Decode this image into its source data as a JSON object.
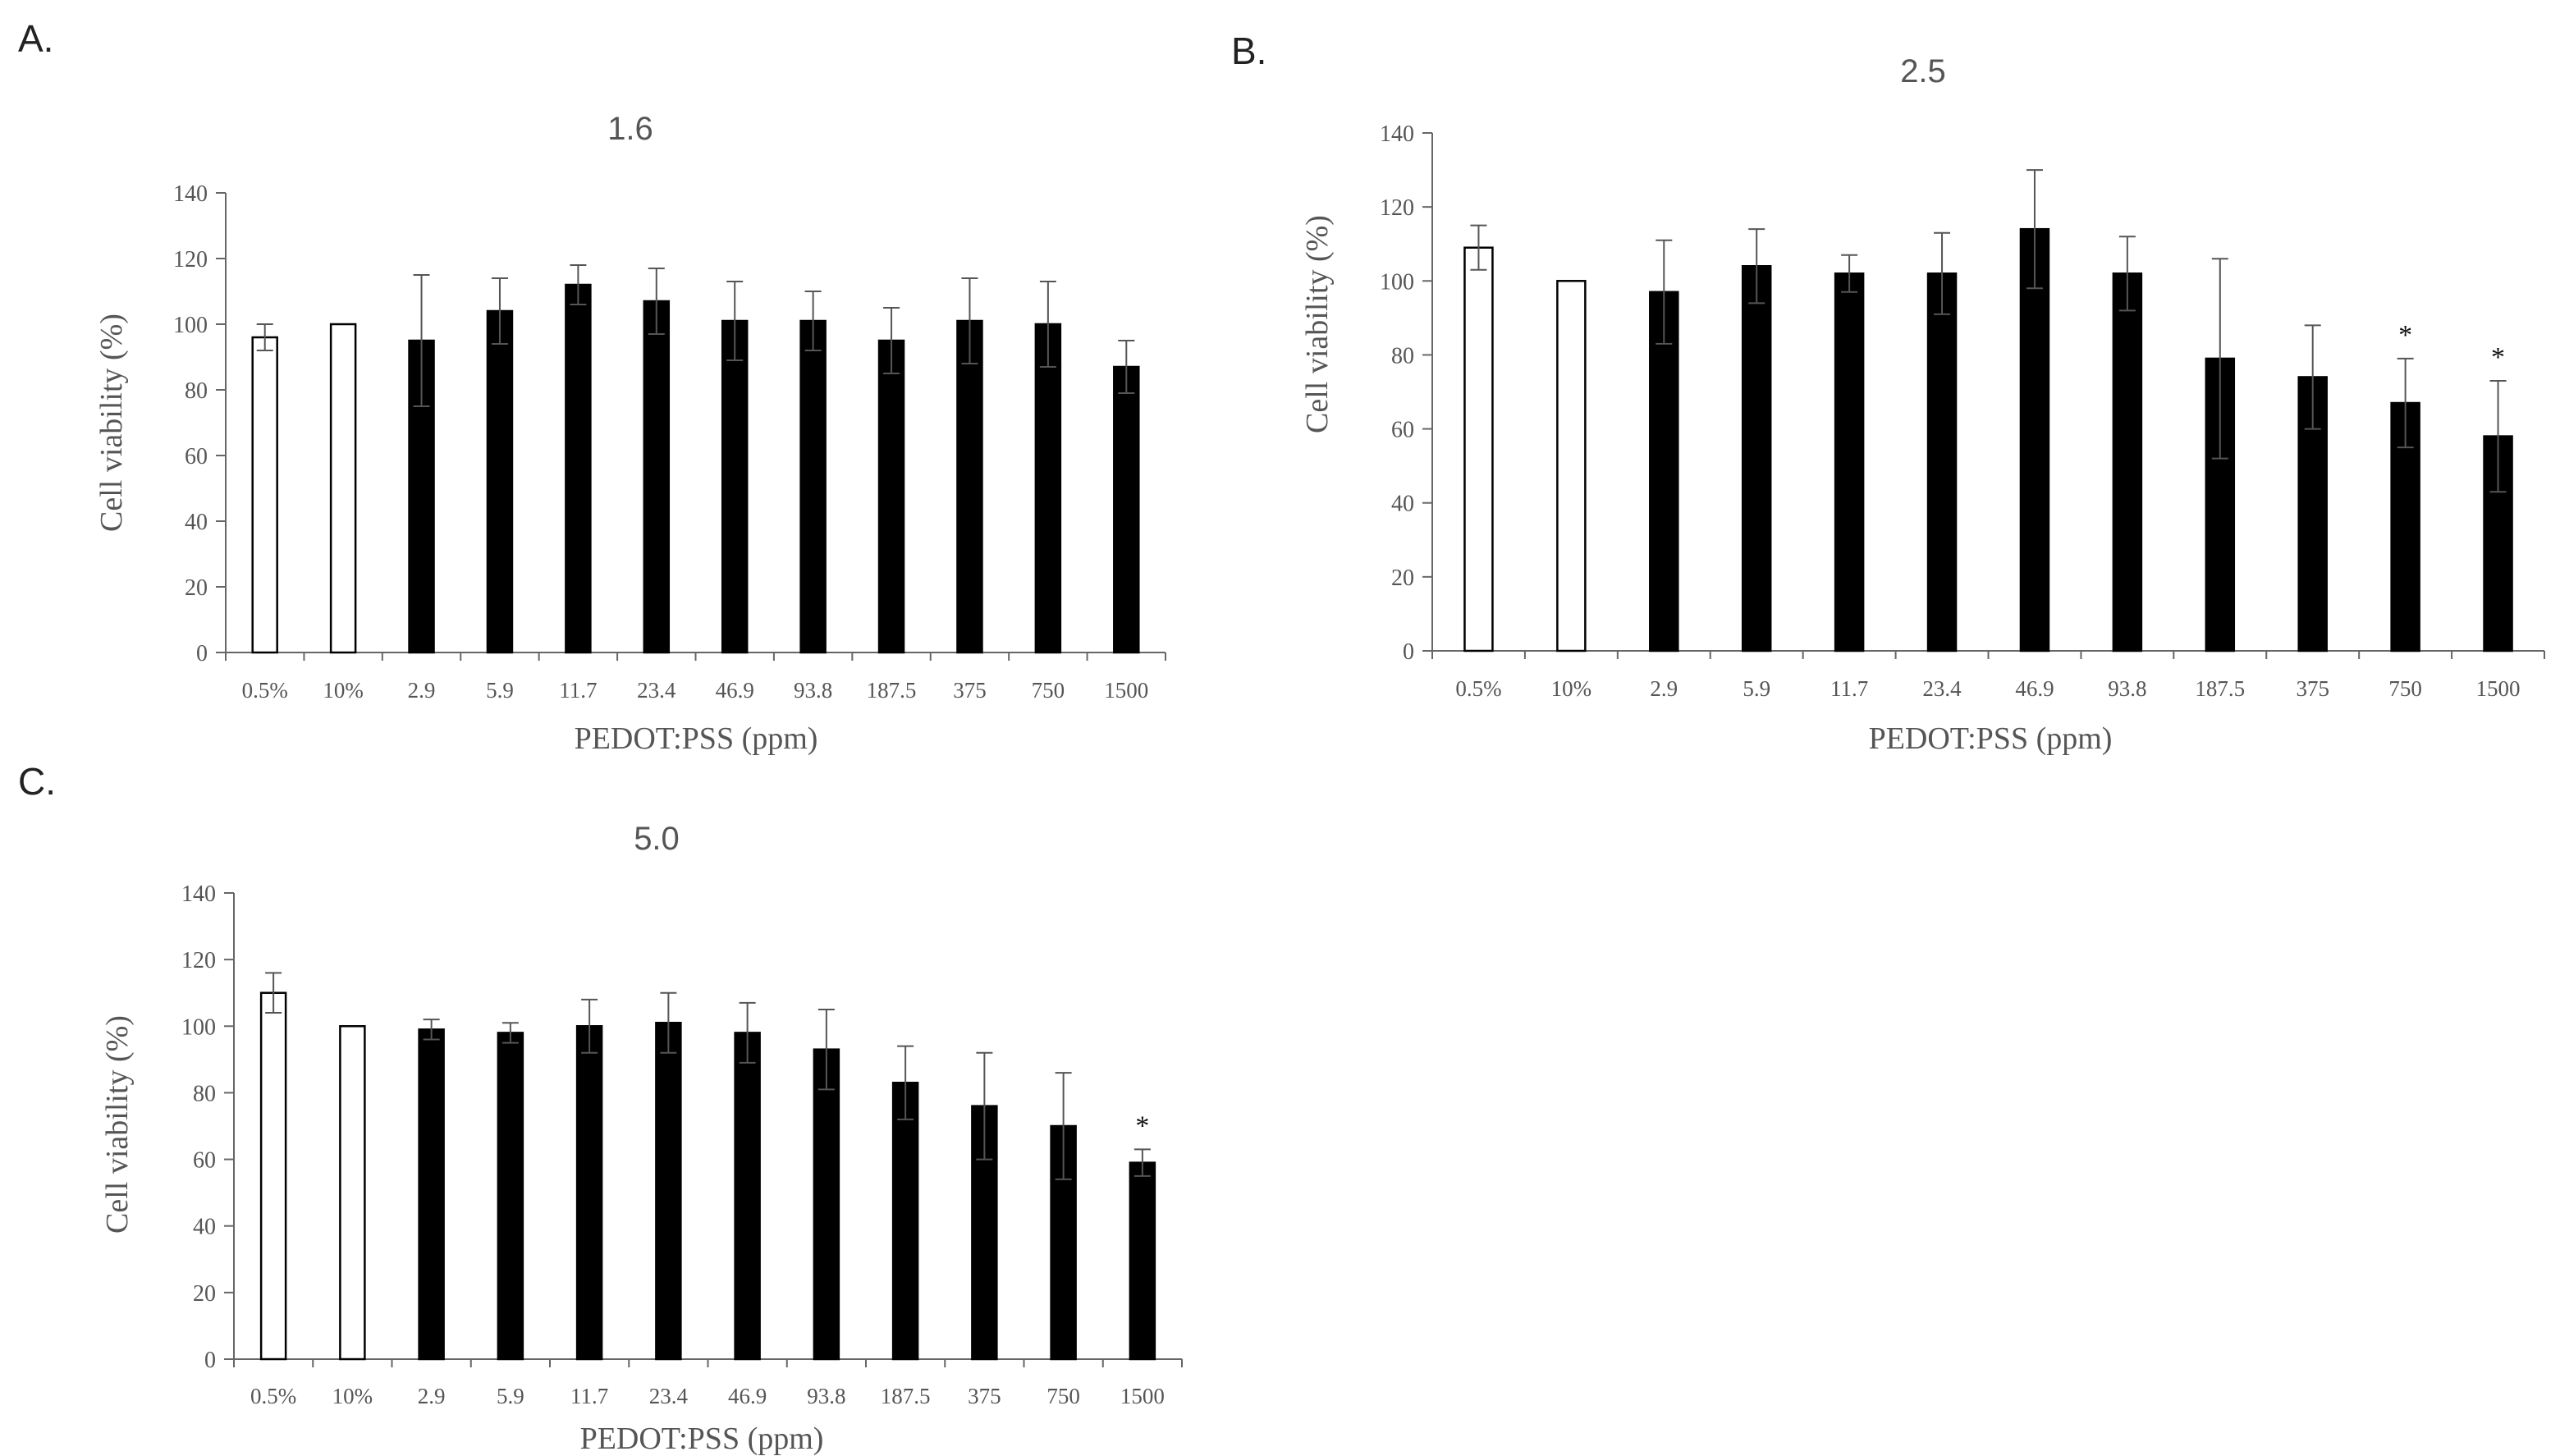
{
  "panels": [
    {
      "label": "A."
    },
    {
      "label": "B."
    },
    {
      "label": "C."
    }
  ],
  "colors": {
    "control_fill": "#ffffff",
    "treatment_fill": "#000000",
    "axis": "#666666",
    "text": "#555555"
  },
  "chart_data": [
    {
      "type": "bar",
      "title": "1.6",
      "xlabel": "PEDOT:PSS (ppm)",
      "ylabel": "Cell viability (%)",
      "ylim": [
        0,
        140
      ],
      "yticks": [
        "0",
        "20",
        "40",
        "60",
        "80",
        "100",
        "120",
        "140"
      ],
      "categories": [
        "0.5%",
        "10%",
        "2.9",
        "5.9",
        "11.7",
        "23.4",
        "46.9",
        "93.8",
        "187.5",
        "375",
        "750",
        "1500"
      ],
      "values": [
        96,
        100,
        95,
        104,
        112,
        107,
        101,
        101,
        95,
        101,
        100,
        87
      ],
      "errors": [
        4,
        0,
        20,
        10,
        6,
        10,
        12,
        9,
        10,
        13,
        13,
        8
      ],
      "bar_kind": [
        "control",
        "control",
        "treatment",
        "treatment",
        "treatment",
        "treatment",
        "treatment",
        "treatment",
        "treatment",
        "treatment",
        "treatment",
        "treatment"
      ],
      "significance": [
        "",
        "",
        "",
        "",
        "",
        "",
        "",
        "",
        "",
        "",
        "",
        ""
      ]
    },
    {
      "type": "bar",
      "title": "2.5",
      "xlabel": "PEDOT:PSS (ppm)",
      "ylabel": "Cell viability (%)",
      "ylim": [
        0,
        140
      ],
      "yticks": [
        "0",
        "20",
        "40",
        "60",
        "80",
        "100",
        "120",
        "140"
      ],
      "categories": [
        "0.5%",
        "10%",
        "2.9",
        "5.9",
        "11.7",
        "23.4",
        "46.9",
        "93.8",
        "187.5",
        "375",
        "750",
        "1500"
      ],
      "values": [
        109,
        100,
        97,
        104,
        102,
        102,
        114,
        102,
        79,
        74,
        67,
        58
      ],
      "errors": [
        6,
        0,
        14,
        10,
        5,
        11,
        16,
        10,
        27,
        14,
        12,
        15
      ],
      "bar_kind": [
        "control",
        "control",
        "treatment",
        "treatment",
        "treatment",
        "treatment",
        "treatment",
        "treatment",
        "treatment",
        "treatment",
        "treatment",
        "treatment"
      ],
      "significance": [
        "",
        "",
        "",
        "",
        "",
        "",
        "",
        "",
        "",
        "",
        "*",
        "*"
      ]
    },
    {
      "type": "bar",
      "title": "5.0",
      "xlabel": "PEDOT:PSS (ppm)",
      "ylabel": "Cell viability (%)",
      "ylim": [
        0,
        140
      ],
      "yticks": [
        "0",
        "20",
        "40",
        "60",
        "80",
        "100",
        "120",
        "140"
      ],
      "categories": [
        "0.5%",
        "10%",
        "2.9",
        "5.9",
        "11.7",
        "23.4",
        "46.9",
        "93.8",
        "187.5",
        "375",
        "750",
        "1500"
      ],
      "values": [
        110,
        100,
        99,
        98,
        100,
        101,
        98,
        93,
        83,
        76,
        70,
        59
      ],
      "errors": [
        6,
        0,
        3,
        3,
        8,
        9,
        9,
        12,
        11,
        16,
        16,
        4
      ],
      "bar_kind": [
        "control",
        "control",
        "treatment",
        "treatment",
        "treatment",
        "treatment",
        "treatment",
        "treatment",
        "treatment",
        "treatment",
        "treatment",
        "treatment"
      ],
      "significance": [
        "",
        "",
        "",
        "",
        "",
        "",
        "",
        "",
        "",
        "",
        "",
        "*"
      ]
    }
  ]
}
